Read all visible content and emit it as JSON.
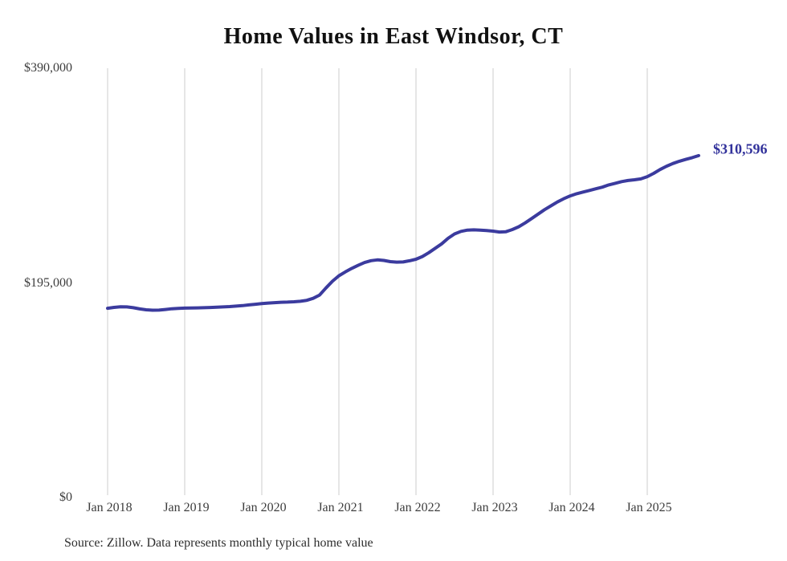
{
  "title": "Home Values in East Windsor, CT",
  "source_note": "Source: Zillow. Data represents monthly typical home value",
  "end_label_text": "$310,596",
  "colors": {
    "line": "#3b3b9e",
    "end_label": "#32329b",
    "grid": "#cccccc",
    "tick_text": "#3d3d3d",
    "title_text": "#111111"
  },
  "chart_data": {
    "type": "line",
    "title": "Home Values in East Windsor, CT",
    "xlabel": "",
    "ylabel": "",
    "ylim": [
      0,
      390000
    ],
    "grid": "vertical-only",
    "legend_position": "none",
    "x_tick_labels": [
      "Jan 2018",
      "Jan 2019",
      "Jan 2020",
      "Jan 2021",
      "Jan 2022",
      "Jan 2023",
      "Jan 2024",
      "Jan 2025"
    ],
    "y_ticks": [
      {
        "label": "$390,000",
        "value": 390000
      },
      {
        "label": "$195,000",
        "value": 195000
      },
      {
        "label": "$0",
        "value": 0
      }
    ],
    "x_start_month": "Jan 2018",
    "x_end_month": "Sep 2025",
    "months_per_point": 1,
    "last_point": {
      "label": "$310,596",
      "value": 310596,
      "month": "Sep 2025"
    },
    "series": [
      {
        "name": "Typical home value",
        "values": [
          172000,
          172800,
          173300,
          173200,
          172500,
          171400,
          170600,
          170200,
          170300,
          170900,
          171500,
          171900,
          172100,
          172200,
          172300,
          172500,
          172700,
          173000,
          173200,
          173500,
          173900,
          174400,
          175000,
          175600,
          176200,
          176700,
          177100,
          177400,
          177600,
          177900,
          178300,
          179200,
          181000,
          184000,
          190500,
          196500,
          201500,
          205000,
          208200,
          211000,
          213500,
          215200,
          215900,
          215400,
          214300,
          213900,
          214000,
          215100,
          216500,
          219000,
          222500,
          226500,
          230500,
          235500,
          239500,
          241800,
          243000,
          243200,
          243000,
          242500,
          242000,
          241200,
          241500,
          243500,
          246000,
          249500,
          253500,
          257500,
          261500,
          265000,
          268500,
          271500,
          274000,
          276000,
          277500,
          279000,
          280500,
          282000,
          284000,
          285500,
          287000,
          288000,
          288700,
          289500,
          291500,
          294500,
          298000,
          301000,
          303500,
          305500,
          307200,
          308800,
          310596
        ]
      }
    ]
  }
}
